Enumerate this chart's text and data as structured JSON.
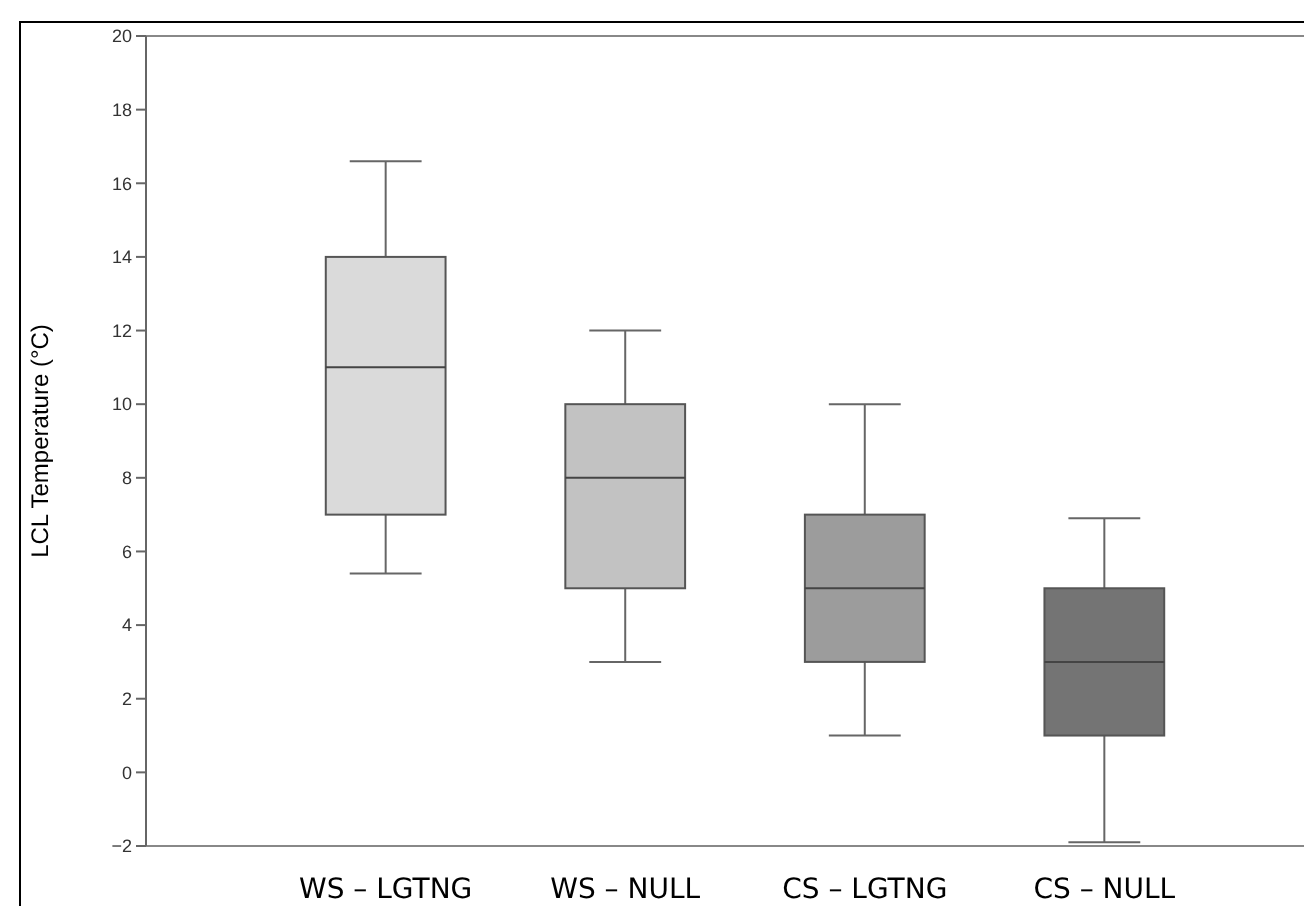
{
  "chart_data": {
    "type": "box",
    "ylabel": "LCL Temperature (°C)",
    "categories": [
      "WS – LGTNG",
      "WS – NULL",
      "CS – LGTNG",
      "CS – NULL"
    ],
    "colors": [
      "#dadada",
      "#c2c2c2",
      "#9c9c9c",
      "#747474"
    ],
    "boxes": [
      {
        "low": 5.4,
        "q1": 7,
        "median": 11,
        "q3": 14,
        "high": 16.6
      },
      {
        "low": 3,
        "q1": 5,
        "median": 8,
        "q3": 10,
        "high": 12
      },
      {
        "low": 1,
        "q1": 3,
        "median": 5,
        "q3": 7,
        "high": 10
      },
      {
        "low": -1.9,
        "q1": 1,
        "median": 3,
        "q3": 5,
        "high": 6.9
      }
    ],
    "ylim": [
      -2,
      20
    ],
    "yticks": [
      -2,
      0,
      2,
      4,
      6,
      8,
      10,
      12,
      14,
      16,
      18,
      20
    ],
    "grid": false
  }
}
